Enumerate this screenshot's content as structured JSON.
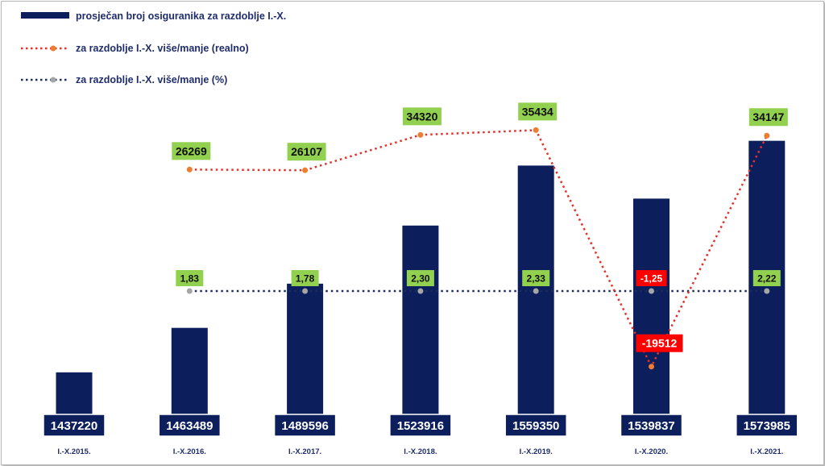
{
  "chart_data": {
    "type": "bar",
    "categories": [
      "I.-X.2015.",
      "I.-X.2016.",
      "I.-X.2017.",
      "I.-X.2018.",
      "I.-X.2019.",
      "I.-X.2020.",
      "I.-X.2021."
    ],
    "series": [
      {
        "name": "prosječan broj osiguranika za razdoblje I.-X.",
        "type": "bar",
        "values": [
          1437220,
          1463489,
          1489596,
          1523916,
          1559350,
          1539837,
          1573985
        ],
        "labels": [
          "1437220",
          "1463489",
          "1489596",
          "1523916",
          "1559350",
          "1539837",
          "1573985"
        ]
      },
      {
        "name": "za razdoblje I.-X. više/manje (realno)",
        "type": "line",
        "values": [
          null,
          26269,
          26107,
          34320,
          35434,
          -19512,
          34147
        ],
        "labels": [
          "",
          "26269",
          "26107",
          "34320",
          "35434",
          "-19512",
          "34147"
        ]
      },
      {
        "name": "za razdoblje I.-X. više/manje (%)",
        "type": "line",
        "values": [
          null,
          1.83,
          1.78,
          2.3,
          2.33,
          -1.25,
          2.22
        ],
        "labels": [
          "",
          "1,83",
          "1,78",
          "2,30",
          "2,33",
          "-1,25",
          "2,22"
        ]
      }
    ],
    "legend_position": "top-left",
    "grid": false,
    "colors": {
      "bar": "#0c1f5c",
      "realno_line": "#e4322b",
      "realno_marker": "#ed7d31",
      "pct_line": "#1f2d5c",
      "pct_marker": "#a6a6a6",
      "positive_label_bg": "#92d050",
      "negative_label_bg": "#ff0000"
    }
  }
}
